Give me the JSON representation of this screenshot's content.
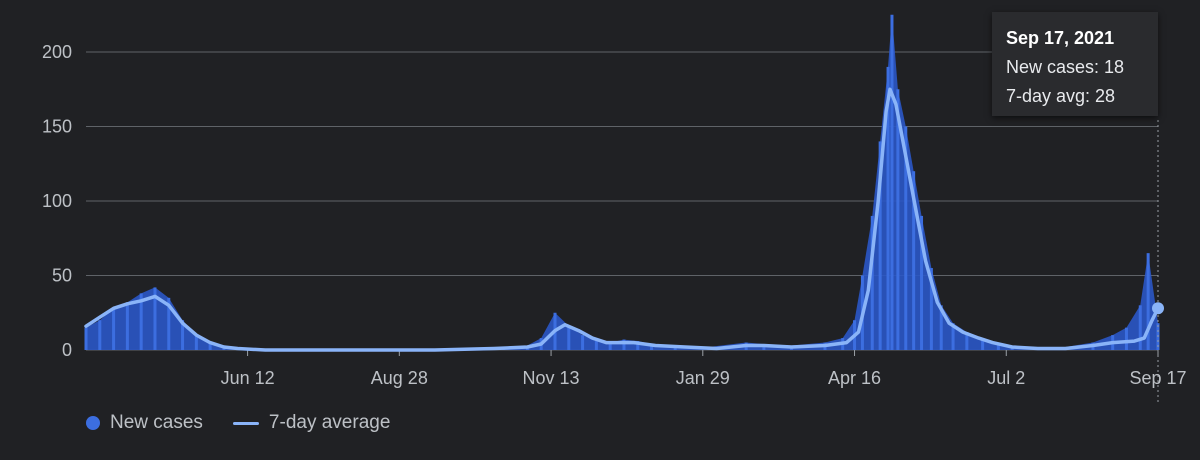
{
  "chart_data": {
    "type": "bar",
    "y_ticks": [
      0,
      50,
      100,
      150,
      200
    ],
    "ylim": [
      0,
      225
    ],
    "x_tick_labels": [
      "Jun 12",
      "Aug 28",
      "Nov 13",
      "Jan 29",
      "Apr 16",
      "Jul 2",
      "Sep 17"
    ],
    "x_tick_dates": [
      "2020-06-12",
      "2020-08-28",
      "2020-11-13",
      "2021-01-29",
      "2021-04-16",
      "2021-07-02",
      "2021-09-17"
    ],
    "x_range": [
      "2020-03-22",
      "2021-09-17"
    ],
    "colors": {
      "bars": "#3c6ee0",
      "bars_fill": "#2a56c6",
      "line": "#8ab4f8",
      "grid": "#5f6368",
      "background": "#202124"
    },
    "series": [
      {
        "name": "New cases",
        "kind": "bar",
        "points": [
          [
            "2020-03-22",
            15
          ],
          [
            "2020-03-29",
            20
          ],
          [
            "2020-04-05",
            28
          ],
          [
            "2020-04-12",
            32
          ],
          [
            "2020-04-19",
            38
          ],
          [
            "2020-04-26",
            42
          ],
          [
            "2020-05-03",
            35
          ],
          [
            "2020-05-10",
            20
          ],
          [
            "2020-05-17",
            10
          ],
          [
            "2020-05-24",
            5
          ],
          [
            "2020-05-31",
            3
          ],
          [
            "2020-06-07",
            1
          ],
          [
            "2020-06-14",
            1
          ],
          [
            "2020-06-21",
            0
          ],
          [
            "2020-07-01",
            0
          ],
          [
            "2020-08-01",
            0
          ],
          [
            "2020-09-01",
            0
          ],
          [
            "2020-10-01",
            1
          ],
          [
            "2020-10-20",
            1
          ],
          [
            "2020-11-01",
            3
          ],
          [
            "2020-11-08",
            8
          ],
          [
            "2020-11-15",
            25
          ],
          [
            "2020-11-22",
            16
          ],
          [
            "2020-11-29",
            10
          ],
          [
            "2020-12-06",
            6
          ],
          [
            "2020-12-13",
            5
          ],
          [
            "2020-12-20",
            7
          ],
          [
            "2020-12-27",
            6
          ],
          [
            "2021-01-03",
            4
          ],
          [
            "2021-01-15",
            2
          ],
          [
            "2021-02-01",
            2
          ],
          [
            "2021-02-20",
            5
          ],
          [
            "2021-03-01",
            4
          ],
          [
            "2021-03-15",
            3
          ],
          [
            "2021-04-01",
            5
          ],
          [
            "2021-04-10",
            8
          ],
          [
            "2021-04-16",
            20
          ],
          [
            "2021-04-20",
            50
          ],
          [
            "2021-04-25",
            90
          ],
          [
            "2021-04-29",
            140
          ],
          [
            "2021-05-03",
            190
          ],
          [
            "2021-05-05",
            225
          ],
          [
            "2021-05-08",
            175
          ],
          [
            "2021-05-12",
            150
          ],
          [
            "2021-05-16",
            120
          ],
          [
            "2021-05-20",
            90
          ],
          [
            "2021-05-25",
            55
          ],
          [
            "2021-05-30",
            30
          ],
          [
            "2021-06-05",
            18
          ],
          [
            "2021-06-12",
            12
          ],
          [
            "2021-06-20",
            8
          ],
          [
            "2021-06-28",
            4
          ],
          [
            "2021-07-05",
            2
          ],
          [
            "2021-07-20",
            1
          ],
          [
            "2021-08-01",
            2
          ],
          [
            "2021-08-15",
            5
          ],
          [
            "2021-08-25",
            10
          ],
          [
            "2021-09-01",
            15
          ],
          [
            "2021-09-08",
            30
          ],
          [
            "2021-09-12",
            65
          ],
          [
            "2021-09-17",
            18
          ]
        ]
      },
      {
        "name": "7-day average",
        "kind": "line",
        "points": [
          [
            "2020-03-22",
            16
          ],
          [
            "2020-03-29",
            22
          ],
          [
            "2020-04-05",
            28
          ],
          [
            "2020-04-12",
            31
          ],
          [
            "2020-04-19",
            33
          ],
          [
            "2020-04-26",
            36
          ],
          [
            "2020-05-03",
            30
          ],
          [
            "2020-05-10",
            18
          ],
          [
            "2020-05-17",
            10
          ],
          [
            "2020-05-24",
            5
          ],
          [
            "2020-05-31",
            2
          ],
          [
            "2020-06-07",
            1
          ],
          [
            "2020-06-21",
            0
          ],
          [
            "2020-07-15",
            0
          ],
          [
            "2020-08-15",
            0
          ],
          [
            "2020-09-15",
            0
          ],
          [
            "2020-10-15",
            1
          ],
          [
            "2020-11-01",
            2
          ],
          [
            "2020-11-08",
            4
          ],
          [
            "2020-11-15",
            13
          ],
          [
            "2020-11-20",
            17
          ],
          [
            "2020-11-27",
            13
          ],
          [
            "2020-12-04",
            8
          ],
          [
            "2020-12-11",
            5
          ],
          [
            "2020-12-18",
            5
          ],
          [
            "2020-12-25",
            5
          ],
          [
            "2021-01-05",
            3
          ],
          [
            "2021-01-20",
            2
          ],
          [
            "2021-02-05",
            1
          ],
          [
            "2021-02-20",
            3
          ],
          [
            "2021-03-01",
            3
          ],
          [
            "2021-03-15",
            2
          ],
          [
            "2021-04-01",
            3
          ],
          [
            "2021-04-12",
            5
          ],
          [
            "2021-04-18",
            12
          ],
          [
            "2021-04-23",
            40
          ],
          [
            "2021-04-28",
            100
          ],
          [
            "2021-05-02",
            160
          ],
          [
            "2021-05-04",
            175
          ],
          [
            "2021-05-07",
            165
          ],
          [
            "2021-05-12",
            130
          ],
          [
            "2021-05-17",
            95
          ],
          [
            "2021-05-22",
            60
          ],
          [
            "2021-05-28",
            32
          ],
          [
            "2021-06-03",
            18
          ],
          [
            "2021-06-10",
            12
          ],
          [
            "2021-06-18",
            8
          ],
          [
            "2021-06-25",
            5
          ],
          [
            "2021-07-05",
            2
          ],
          [
            "2021-07-18",
            1
          ],
          [
            "2021-08-01",
            1
          ],
          [
            "2021-08-15",
            3
          ],
          [
            "2021-08-25",
            5
          ],
          [
            "2021-09-05",
            6
          ],
          [
            "2021-09-10",
            8
          ],
          [
            "2021-09-14",
            20
          ],
          [
            "2021-09-17",
            28
          ]
        ]
      }
    ],
    "legend": {
      "placement": "bottom-left",
      "items": [
        "New cases",
        "7-day average"
      ]
    },
    "tooltip": {
      "date": "Sep 17, 2021",
      "line1": "New cases: 18",
      "line2": "7-day avg: 28"
    }
  }
}
